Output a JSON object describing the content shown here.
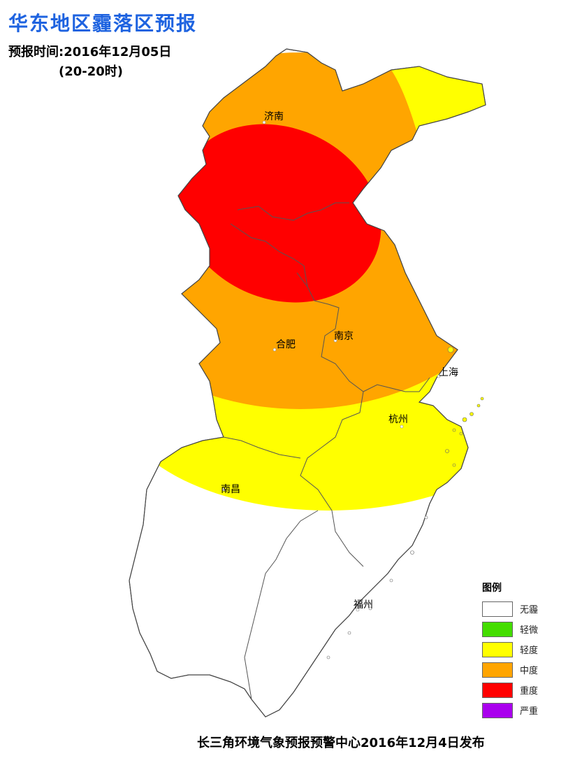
{
  "header": {
    "title": "华东地区霾落区预报",
    "forecast_time": "预报时间:2016年12月05日",
    "period": "(20-20时)"
  },
  "map": {
    "cities": [
      {
        "id": "jinan",
        "name": "济南"
      },
      {
        "id": "hefei",
        "name": "合肥"
      },
      {
        "id": "nanjing",
        "name": "南京"
      },
      {
        "id": "shanghai",
        "name": "上海"
      },
      {
        "id": "hangzhou",
        "name": "杭州"
      },
      {
        "id": "nanchang",
        "name": "南昌"
      },
      {
        "id": "fuzhou",
        "name": "福州"
      }
    ]
  },
  "legend": {
    "title": "图例",
    "items": [
      {
        "label": "无霾",
        "color": "#ffffff"
      },
      {
        "label": "轻微",
        "color": "#44dd00"
      },
      {
        "label": "轻度",
        "color": "#ffff00"
      },
      {
        "label": "中度",
        "color": "#ffa500"
      },
      {
        "label": "重度",
        "color": "#ff0000"
      },
      {
        "label": "严重",
        "color": "#aa00ee"
      }
    ]
  },
  "footer": {
    "publisher": "长三角环境气象预报预警中心2016年12月4日发布"
  }
}
